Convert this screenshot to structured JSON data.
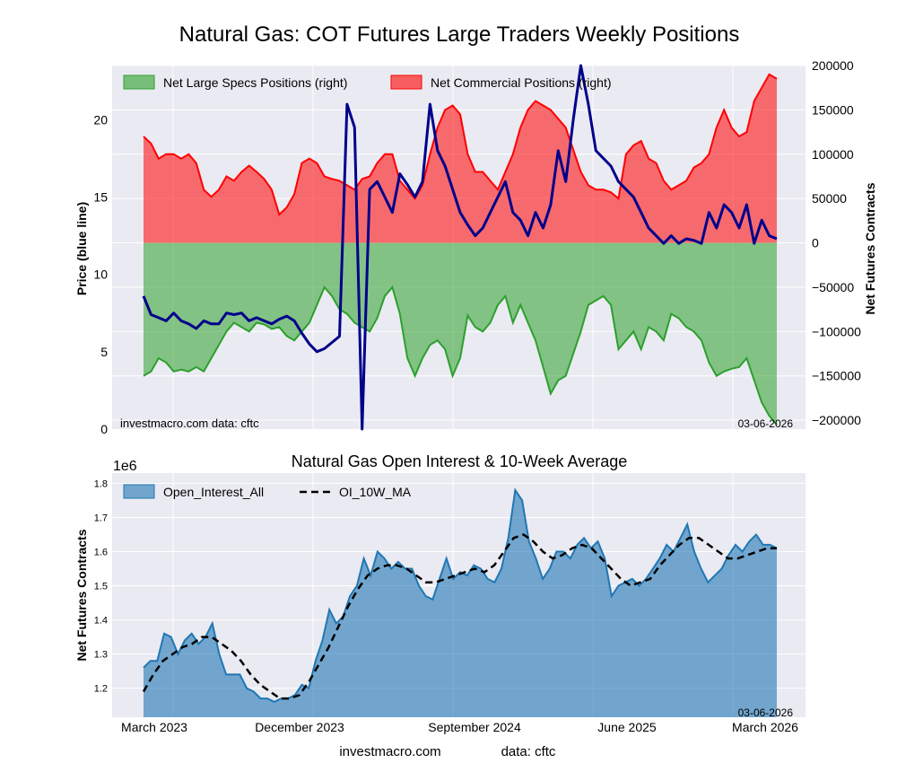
{
  "title": "Natural Gas: COT Futures Large Traders Weekly Positions",
  "chart_data": [
    {
      "type": "area",
      "ylabel_left": "Price (blue line)",
      "ylabel_right": "Net Futures Contracts",
      "yticks_left": [
        "0",
        "5",
        "10",
        "15",
        "20"
      ],
      "yticks_right": [
        "200000",
        "150000",
        "100000",
        "50000",
        "0",
        "−50000",
        "−100000",
        "−150000",
        "−200000"
      ],
      "ylim_left": [
        0,
        23.5
      ],
      "ylim_right": [
        -210000,
        200000
      ],
      "grid": true,
      "legend_placement": "top-left",
      "watermark": "investmacro.com    data: cftc",
      "date_label": "03-06-2026",
      "series": [
        {
          "name": "Net Large Specs Positions (right)",
          "color": "#2ca02c",
          "values": [
            -150000,
            -145000,
            -130000,
            -135000,
            -145000,
            -143000,
            -145000,
            -140000,
            -145000,
            -130000,
            -115000,
            -100000,
            -90000,
            -95000,
            -100000,
            -90000,
            -92000,
            -97000,
            -95000,
            -105000,
            -110000,
            -100000,
            -90000,
            -70000,
            -50000,
            -60000,
            -75000,
            -80000,
            -90000,
            -95000,
            -100000,
            -85000,
            -60000,
            -50000,
            -80000,
            -130000,
            -150000,
            -130000,
            -115000,
            -110000,
            -120000,
            -150000,
            -130000,
            -82000,
            -95000,
            -100000,
            -90000,
            -70000,
            -60000,
            -90000,
            -70000,
            -90000,
            -110000,
            -140000,
            -170000,
            -155000,
            -150000,
            -125000,
            -100000,
            -70000,
            -65000,
            -60000,
            -70000,
            -120000,
            -110000,
            -100000,
            -120000,
            -95000,
            -100000,
            -110000,
            -80000,
            -85000,
            -95000,
            -100000,
            -110000,
            -135000,
            -150000,
            -145000,
            -142000,
            -140000,
            -130000,
            -155000,
            -180000,
            -195000,
            -205000
          ]
        },
        {
          "name": "Net Commercial Positions (right)",
          "color": "#ff0000",
          "values": [
            120000,
            112000,
            95000,
            100000,
            100000,
            95000,
            100000,
            90000,
            60000,
            52000,
            60000,
            75000,
            70000,
            80000,
            87000,
            80000,
            72000,
            60000,
            32000,
            40000,
            55000,
            90000,
            95000,
            90000,
            75000,
            72000,
            70000,
            65000,
            60000,
            72000,
            75000,
            90000,
            100000,
            100000,
            70000,
            60000,
            50000,
            65000,
            100000,
            130000,
            150000,
            155000,
            145000,
            100000,
            80000,
            80000,
            70000,
            60000,
            80000,
            100000,
            130000,
            150000,
            160000,
            155000,
            150000,
            140000,
            130000,
            105000,
            80000,
            65000,
            60000,
            60000,
            57000,
            50000,
            100000,
            110000,
            115000,
            95000,
            90000,
            70000,
            60000,
            65000,
            70000,
            85000,
            90000,
            100000,
            130000,
            150000,
            130000,
            120000,
            125000,
            160000,
            175000,
            190000,
            185000
          ]
        },
        {
          "name": "Price",
          "color": "#00008b",
          "values": [
            8.6,
            7.4,
            7.2,
            7.0,
            7.5,
            7.0,
            6.8,
            6.5,
            7.0,
            6.8,
            6.8,
            7.5,
            7.4,
            7.5,
            7.0,
            7.2,
            7.0,
            6.8,
            7.1,
            7.3,
            7.0,
            6.2,
            5.5,
            5.0,
            5.2,
            5.6,
            6.0,
            21.0,
            19.5,
            0.0,
            15.5,
            16.0,
            15.0,
            14.0,
            16.5,
            15.8,
            15.0,
            16.0,
            21.0,
            18.0,
            17.0,
            15.5,
            14.0,
            13.2,
            12.5,
            13.0,
            14.0,
            15.0,
            16.0,
            14.0,
            13.5,
            12.5,
            14.0,
            13.0,
            14.5,
            18.0,
            16.0,
            20.0,
            23.5,
            21.0,
            18.0,
            17.5,
            17.0,
            16.0,
            15.5,
            15.0,
            14.0,
            13.0,
            12.5,
            12.0,
            12.5,
            12.0,
            12.3,
            12.2,
            12.0,
            14.0,
            13.0,
            14.5,
            14.0,
            13.0,
            14.5,
            12.0,
            13.5,
            12.5,
            12.3
          ]
        }
      ],
      "notes": "Price series values are approximate, read from the blue line."
    },
    {
      "type": "area",
      "title": "Natural Gas Open Interest & 10-Week Average",
      "ylabel": "Net Futures Contracts",
      "y_multiplier": "1e6",
      "yticks": [
        "1.2",
        "1.3",
        "1.4",
        "1.5",
        "1.6",
        "1.7",
        "1.8"
      ],
      "ylim": [
        1.115,
        1.83
      ],
      "xticks": [
        "March 2023",
        "December 2023",
        "September 2024",
        "June 2025",
        "March 2026"
      ],
      "grid": true,
      "legend_placement": "top-left",
      "date_label": "03-06-2026",
      "series": [
        {
          "name": "Open_Interest_All",
          "color": "#1f77b4",
          "values": [
            1.26,
            1.28,
            1.28,
            1.36,
            1.35,
            1.3,
            1.34,
            1.36,
            1.33,
            1.35,
            1.39,
            1.3,
            1.24,
            1.24,
            1.24,
            1.2,
            1.19,
            1.17,
            1.17,
            1.16,
            1.17,
            1.17,
            1.18,
            1.21,
            1.2,
            1.28,
            1.34,
            1.43,
            1.39,
            1.41,
            1.47,
            1.5,
            1.58,
            1.53,
            1.6,
            1.58,
            1.55,
            1.57,
            1.55,
            1.55,
            1.5,
            1.47,
            1.46,
            1.52,
            1.58,
            1.52,
            1.54,
            1.53,
            1.56,
            1.55,
            1.52,
            1.51,
            1.55,
            1.64,
            1.78,
            1.75,
            1.63,
            1.58,
            1.52,
            1.55,
            1.6,
            1.6,
            1.58,
            1.62,
            1.64,
            1.61,
            1.63,
            1.58,
            1.47,
            1.5,
            1.51,
            1.52,
            1.5,
            1.52,
            1.55,
            1.58,
            1.62,
            1.6,
            1.64,
            1.68,
            1.6,
            1.55,
            1.51,
            1.53,
            1.55,
            1.59,
            1.62,
            1.6,
            1.63,
            1.65,
            1.62,
            1.62,
            1.61
          ]
        },
        {
          "name": "OI_10W_MA",
          "color": "#000000",
          "style": "dashed",
          "values": [
            1.19,
            1.24,
            1.28,
            1.3,
            1.32,
            1.33,
            1.35,
            1.35,
            1.33,
            1.31,
            1.28,
            1.24,
            1.21,
            1.19,
            1.17,
            1.17,
            1.18,
            1.22,
            1.27,
            1.32,
            1.38,
            1.44,
            1.49,
            1.53,
            1.55,
            1.56,
            1.56,
            1.55,
            1.53,
            1.51,
            1.51,
            1.52,
            1.53,
            1.54,
            1.55,
            1.54,
            1.56,
            1.6,
            1.64,
            1.65,
            1.63,
            1.6,
            1.58,
            1.59,
            1.61,
            1.62,
            1.61,
            1.58,
            1.55,
            1.52,
            1.5,
            1.51,
            1.52,
            1.56,
            1.59,
            1.62,
            1.64,
            1.64,
            1.62,
            1.6,
            1.58,
            1.58,
            1.59,
            1.6,
            1.61,
            1.61
          ]
        }
      ]
    }
  ],
  "footer": {
    "left": "investmacro.com",
    "right": "data: cftc"
  }
}
